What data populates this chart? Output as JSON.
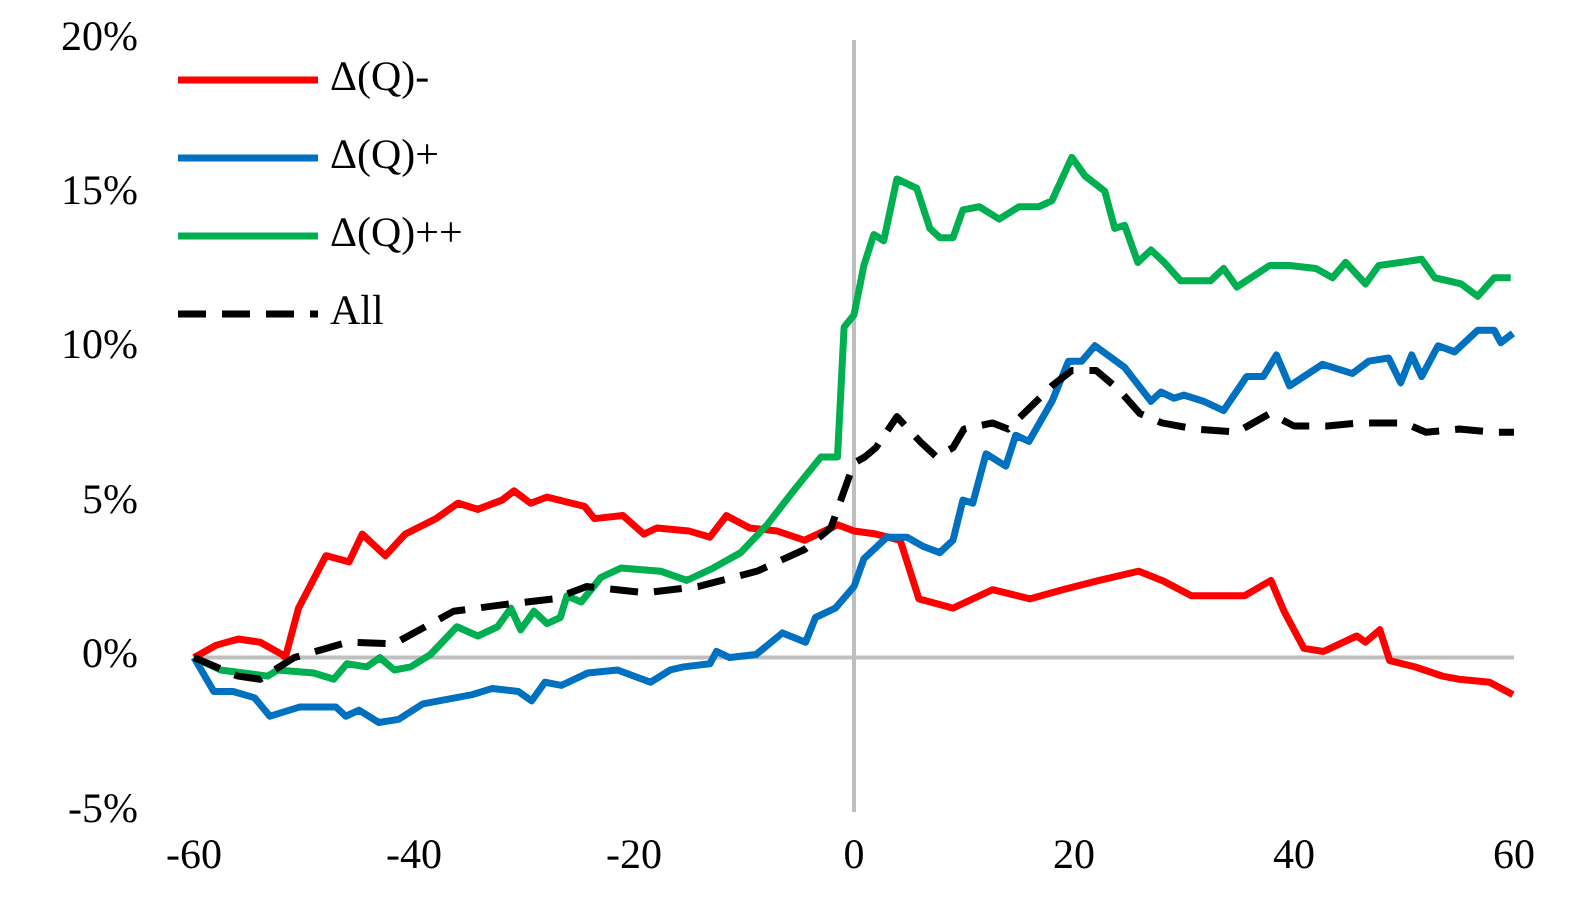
{
  "chart_data": {
    "type": "line",
    "xlim": [
      -60,
      60
    ],
    "xticks": [
      -60,
      -40,
      -20,
      0,
      20,
      40,
      60
    ],
    "ylim": [
      -5,
      20
    ],
    "yticks": [
      {
        "value": -5,
        "label": "-5%"
      },
      {
        "value": 0,
        "label": "0%"
      },
      {
        "value": 5,
        "label": "5%"
      },
      {
        "value": 10,
        "label": "10%"
      },
      {
        "value": 15,
        "label": "15%"
      },
      {
        "value": 20,
        "label": "20%"
      }
    ],
    "legend": "top left",
    "series": [
      {
        "name": "Δ(Q)-",
        "color": "#ff0000",
        "x": [
          -60,
          -58,
          -56,
          -54,
          -52,
          -51.7,
          -50.5,
          -48,
          -45.9,
          -44.7,
          -42.6,
          -40.8,
          -38,
          -36,
          -34.2,
          -32,
          -30.9,
          -29.4,
          -27.9,
          -24.5,
          -23.6,
          -21,
          -19.1,
          -17.9,
          -15,
          -13.1,
          -11.6,
          -9.5,
          -7,
          -4.5,
          -1.5,
          0,
          2,
          4.2,
          5.9,
          9,
          12.6,
          16,
          19,
          22.3,
          25.9,
          28,
          30.7,
          35.5,
          37.9,
          39.1,
          40.9,
          42.7,
          45.7,
          46.5,
          47.8,
          48.7,
          51,
          53.5,
          55,
          57.8,
          59.9
        ],
        "values": [
          0,
          0.4,
          0.6,
          0.5,
          0.1,
          0,
          1.6,
          3.3,
          3.1,
          4,
          3.3,
          4,
          4.5,
          5,
          4.8,
          5.1,
          5.4,
          5,
          5.2,
          4.9,
          4.5,
          4.6,
          4,
          4.2,
          4.1,
          3.9,
          4.6,
          4.2,
          4.1,
          3.8,
          4.3,
          4.1,
          4,
          3.8,
          1.9,
          1.6,
          2.2,
          1.9,
          2.2,
          2.5,
          2.8,
          2.5,
          2,
          2,
          2.5,
          1.5,
          0.3,
          0.2,
          0.7,
          0.5,
          0.9,
          -0.1,
          -0.3,
          -0.6,
          -0.7,
          -0.8,
          -1.2
        ]
      },
      {
        "name": "Δ(Q)+",
        "color": "#0070c0",
        "x": [
          -60,
          -58.2,
          -56.4,
          -54.5,
          -53.1,
          -50.4,
          -47.1,
          -46.2,
          -45,
          -43.2,
          -41.4,
          -39.2,
          -34.7,
          -32.9,
          -30.5,
          -29.3,
          -28.1,
          -26.6,
          -24.2,
          -21.5,
          -18.5,
          -16.7,
          -15.5,
          -13.1,
          -12.5,
          -11.3,
          -8.9,
          -6.5,
          -4.4,
          -3.5,
          -1.7,
          0,
          0.9,
          3,
          4.8,
          6.3,
          7.8,
          9,
          9.9,
          10.8,
          12,
          13.8,
          14.7,
          15.9,
          18,
          19.5,
          20.7,
          21.9,
          24.6,
          27,
          27.9,
          29.1,
          30,
          31.8,
          33.6,
          35.7,
          37.2,
          38.4,
          39.6,
          42.6,
          45.3,
          46.8,
          48.6,
          49.7,
          50.7,
          51.6,
          53.1,
          54.6,
          56.7,
          58.2,
          58.8,
          59.9
        ],
        "values": [
          0,
          -1.1,
          -1.1,
          -1.3,
          -1.9,
          -1.6,
          -1.6,
          -1.9,
          -1.7,
          -2.1,
          -2,
          -1.5,
          -1.2,
          -1,
          -1.1,
          -1.4,
          -0.8,
          -0.9,
          -0.5,
          -0.4,
          -0.8,
          -0.4,
          -0.3,
          -0.2,
          0.2,
          0,
          0.1,
          0.8,
          0.5,
          1.3,
          1.6,
          2.3,
          3.2,
          3.9,
          3.9,
          3.6,
          3.4,
          3.8,
          5.1,
          5,
          6.6,
          6.2,
          7.2,
          7,
          8.3,
          9.6,
          9.6,
          10.1,
          9.4,
          8.3,
          8.6,
          8.4,
          8.5,
          8.3,
          8,
          9.1,
          9.1,
          9.8,
          8.8,
          9.5,
          9.2,
          9.6,
          9.7,
          8.9,
          9.8,
          9.1,
          10.1,
          9.9,
          10.6,
          10.6,
          10.2,
          10.5
        ]
      },
      {
        "name": "Δ(Q)++",
        "color": "#00b050",
        "x": [
          -60,
          -57.6,
          -53.3,
          -52.4,
          -49.1,
          -47.3,
          -46.1,
          -44.3,
          -43.1,
          -41.8,
          -40.3,
          -38.5,
          -36.1,
          -34.2,
          -32.4,
          -31.2,
          -30.3,
          -29.1,
          -27.9,
          -26.7,
          -26.1,
          -24.8,
          -23,
          -21.2,
          -17.6,
          -15.2,
          -12.8,
          -10.3,
          -7.9,
          -5.5,
          -3,
          -1.5,
          -0.9,
          0,
          0.9,
          1.8,
          2.7,
          3.9,
          5.7,
          6.9,
          7.8,
          9,
          9.9,
          11.4,
          13.2,
          15,
          16.8,
          18,
          19.8,
          21,
          22.8,
          23.7,
          24.6,
          25.8,
          27,
          28.2,
          29.7,
          32.4,
          33.6,
          34.8,
          37.8,
          39.6,
          42,
          43.5,
          44.7,
          46.5,
          47.7,
          49.8,
          51.6,
          52.8,
          55.2,
          56.7,
          58.2,
          59.7
        ],
        "values": [
          0,
          -0.4,
          -0.6,
          -0.4,
          -0.5,
          -0.7,
          -0.2,
          -0.3,
          0,
          -0.4,
          -0.3,
          0.1,
          1,
          0.7,
          1,
          1.6,
          0.9,
          1.5,
          1.1,
          1.3,
          2,
          1.8,
          2.6,
          2.9,
          2.8,
          2.5,
          2.9,
          3.4,
          4.3,
          5.4,
          6.5,
          6.5,
          10.7,
          11.1,
          12.7,
          13.7,
          13.5,
          15.5,
          15.2,
          13.9,
          13.6,
          13.6,
          14.5,
          14.6,
          14.2,
          14.6,
          14.6,
          14.8,
          16.2,
          15.6,
          15.1,
          13.9,
          14,
          12.8,
          13.2,
          12.8,
          12.2,
          12.2,
          12.6,
          12,
          12.7,
          12.7,
          12.6,
          12.3,
          12.8,
          12.1,
          12.7,
          12.8,
          12.9,
          12.3,
          12.1,
          11.7,
          12.3,
          12.3
        ]
      },
      {
        "name": "All",
        "color": "#000000",
        "line_style": "dashed",
        "x": [
          -60,
          -56,
          -54,
          -50.9,
          -46,
          -41.8,
          -36.4,
          -32.2,
          -27.3,
          -24.3,
          -18.9,
          -14.2,
          -8.8,
          -4.5,
          -2.1,
          0,
          1,
          2,
          3.9,
          6,
          7.5,
          9,
          10,
          12.6,
          14,
          16,
          18,
          19.8,
          22,
          24,
          26,
          28,
          31,
          34.8,
          37.8,
          40,
          43,
          46,
          47.7,
          50,
          52,
          55,
          58,
          60
        ],
        "values": [
          0,
          -0.6,
          -0.7,
          0,
          0.5,
          0.45,
          1.5,
          1.7,
          1.9,
          2.3,
          2.1,
          2.3,
          2.8,
          3.5,
          4.2,
          6.3,
          6.5,
          6.8,
          7.8,
          7,
          6.5,
          6.8,
          7.4,
          7.6,
          7.4,
          8.1,
          8.8,
          9.3,
          9.3,
          8.7,
          7.9,
          7.6,
          7.4,
          7.3,
          7.9,
          7.5,
          7.5,
          7.6,
          7.6,
          7.6,
          7.3,
          7.4,
          7.3,
          7.3
        ]
      }
    ]
  }
}
